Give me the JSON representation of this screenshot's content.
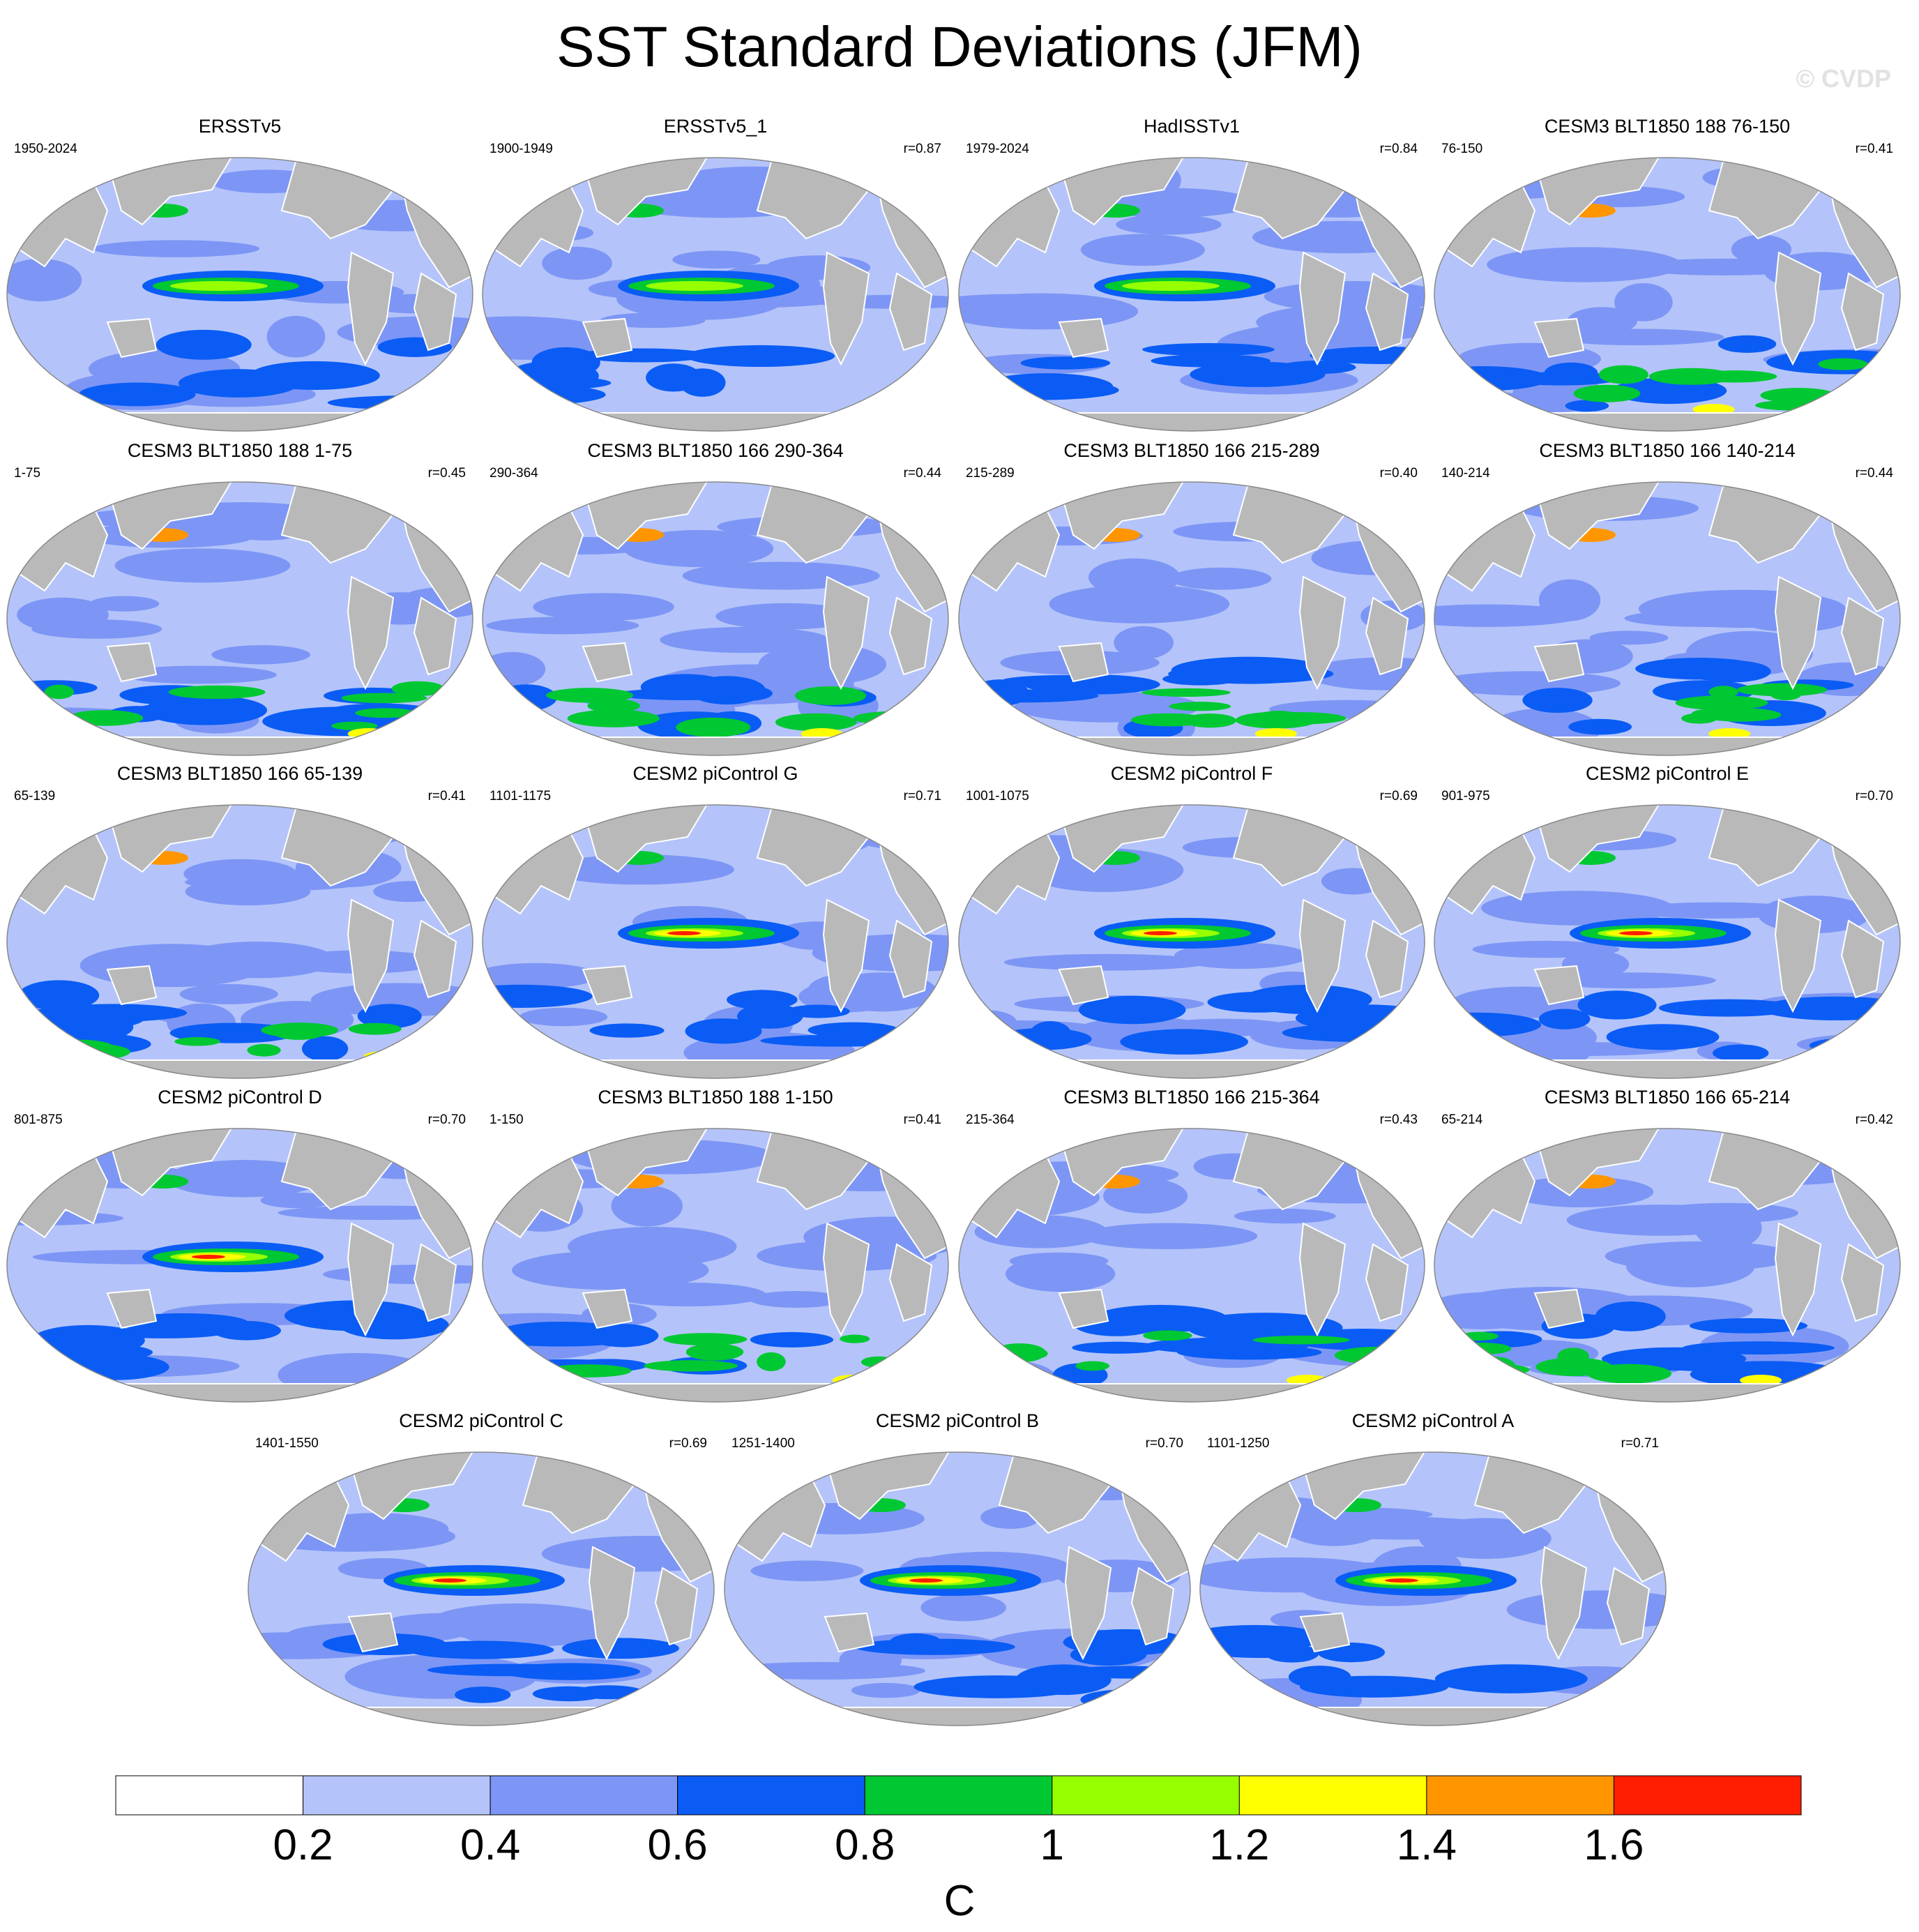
{
  "title": "SST Standard Deviations (JFM)",
  "watermark": "© CVDP",
  "chart_data": {
    "type": "heatmap",
    "variable": "SST standard deviation",
    "season": "JFM",
    "projection": "global equal-area ellipse (Robinson-like)",
    "panels": [
      {
        "name": "ERSSTv5",
        "period": "1950-2024",
        "r": ""
      },
      {
        "name": "ERSSTv5_1",
        "period": "1900-1949",
        "r": "r=0.87"
      },
      {
        "name": "HadISSTv1",
        "period": "1979-2024",
        "r": "r=0.84"
      },
      {
        "name": "CESM3 BLT1850 188 76-150",
        "period": "76-150",
        "r": "r=0.41"
      },
      {
        "name": "CESM3 BLT1850 188 1-75",
        "period": "1-75",
        "r": "r=0.45"
      },
      {
        "name": "CESM3 BLT1850 166 290-364",
        "period": "290-364",
        "r": "r=0.44"
      },
      {
        "name": "CESM3 BLT1850 166 215-289",
        "period": "215-289",
        "r": "r=0.40"
      },
      {
        "name": "CESM3 BLT1850 166 140-214",
        "period": "140-214",
        "r": "r=0.44"
      },
      {
        "name": "CESM3 BLT1850 166 65-139",
        "period": "65-139",
        "r": "r=0.41"
      },
      {
        "name": "CESM2 piControl G",
        "period": "1101-1175",
        "r": "r=0.71"
      },
      {
        "name": "CESM2 piControl F",
        "period": "1001-1075",
        "r": "r=0.69"
      },
      {
        "name": "CESM2 piControl E",
        "period": "901-975",
        "r": "r=0.70"
      },
      {
        "name": "CESM2 piControl D",
        "period": "801-875",
        "r": "r=0.70"
      },
      {
        "name": "CESM3 BLT1850 188 1-150",
        "period": "1-150",
        "r": "r=0.41"
      },
      {
        "name": "CESM3 BLT1850 166 215-364",
        "period": "215-364",
        "r": "r=0.43"
      },
      {
        "name": "CESM3 BLT1850 166 65-214",
        "period": "65-214",
        "r": "r=0.42"
      },
      {
        "name": "CESM2 piControl C",
        "period": "1401-1550",
        "r": "r=0.69"
      },
      {
        "name": "CESM2 piControl B",
        "period": "1251-1400",
        "r": "r=0.70"
      },
      {
        "name": "CESM2 piControl A",
        "period": "1101-1250",
        "r": "r=0.71"
      }
    ],
    "colorbar": {
      "unit": "C",
      "levels": [
        0.2,
        0.4,
        0.6,
        0.8,
        1,
        1.2,
        1.4,
        1.6
      ],
      "tick_labels": [
        "0.2",
        "0.4",
        "0.6",
        "0.8",
        "1",
        "1.2",
        "1.4",
        "1.6"
      ],
      "colors": [
        "#ffffff",
        "#b4c4fa",
        "#7d96f5",
        "#0a5cf5",
        "#00c832",
        "#96ff00",
        "#ffff00",
        "#ff9600",
        "#ff1e00"
      ]
    },
    "colors": {
      "land": "#b9b9b9",
      "coast": "#ffffff",
      "outline": "#888888"
    }
  }
}
